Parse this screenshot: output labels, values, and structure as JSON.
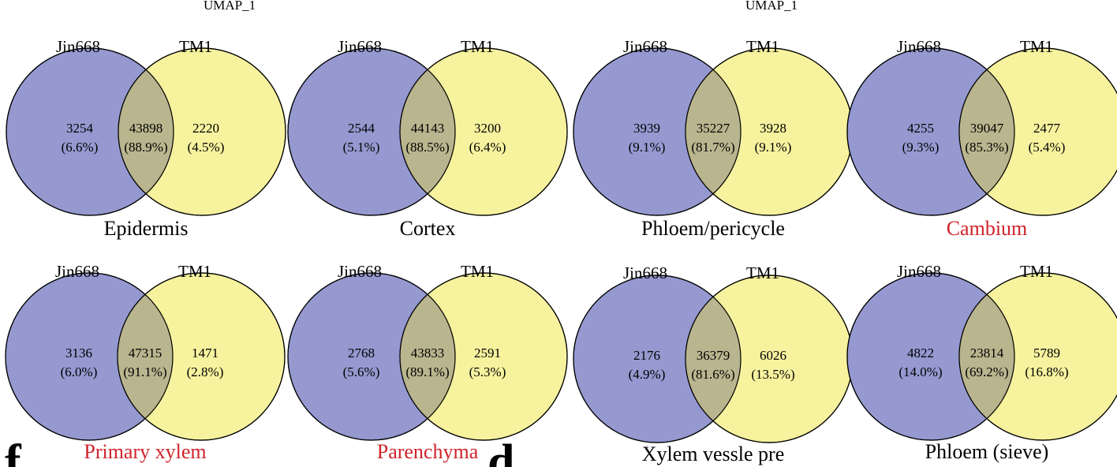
{
  "top_axis_labels": [
    "UMAP_1",
    "UMAP_1"
  ],
  "colors": {
    "left_circle": "#9599d0",
    "right_circle": "#f6f29e",
    "overlap": "#b9b58e",
    "title_default": "#000000",
    "title_highlight": "#d0232b"
  },
  "venns": [
    {
      "title": "Epidermis",
      "highlight": false,
      "left_label": "Jin668",
      "right_label": "TM1",
      "left": {
        "count": "3254",
        "pct": "(6.6%)"
      },
      "overlap": {
        "count": "43898",
        "pct": "(88.9%)"
      },
      "right": {
        "count": "2220",
        "pct": "(4.5%)"
      }
    },
    {
      "title": "Cortex",
      "highlight": false,
      "left_label": "Jin668",
      "right_label": "TM1",
      "left": {
        "count": "2544",
        "pct": "(5.1%)"
      },
      "overlap": {
        "count": "44143",
        "pct": "(88.5%)"
      },
      "right": {
        "count": "3200",
        "pct": "(6.4%)"
      }
    },
    {
      "title": "Phloem/pericycle",
      "highlight": false,
      "left_label": "Jin668",
      "right_label": "TM1",
      "left": {
        "count": "3939",
        "pct": "(9.1%)"
      },
      "overlap": {
        "count": "35227",
        "pct": "(81.7%)"
      },
      "right": {
        "count": "3928",
        "pct": "(9.1%)"
      }
    },
    {
      "title": "Cambium",
      "highlight": true,
      "left_label": "Jin668",
      "right_label": "TM1",
      "left": {
        "count": "4255",
        "pct": "(9.3%)"
      },
      "overlap": {
        "count": "39047",
        "pct": "(85.3%)"
      },
      "right": {
        "count": "2477",
        "pct": "(5.4%)"
      }
    },
    {
      "title": "Primary xylem",
      "highlight": true,
      "left_label": "Jin668",
      "right_label": "TM1",
      "left": {
        "count": "3136",
        "pct": "(6.0%)"
      },
      "overlap": {
        "count": "47315",
        "pct": "(91.1%)"
      },
      "right": {
        "count": "1471",
        "pct": "(2.8%)"
      }
    },
    {
      "title": "Parenchyma",
      "highlight": true,
      "left_label": "Jin668",
      "right_label": "TM1",
      "left": {
        "count": "2768",
        "pct": "(5.6%)"
      },
      "overlap": {
        "count": "43833",
        "pct": "(89.1%)"
      },
      "right": {
        "count": "2591",
        "pct": "(5.3%)"
      }
    },
    {
      "title": "Xylem vessle pre",
      "highlight": false,
      "left_label": "Jin668",
      "right_label": "TM1",
      "left": {
        "count": "2176",
        "pct": "(4.9%)"
      },
      "overlap": {
        "count": "36379",
        "pct": "(81.6%)"
      },
      "right": {
        "count": "6026",
        "pct": "(13.5%)"
      }
    },
    {
      "title": "Phloem (sieve)",
      "highlight": false,
      "left_label": "Jin668",
      "right_label": "TM1",
      "left": {
        "count": "4822",
        "pct": "(14.0%)"
      },
      "overlap": {
        "count": "23814",
        "pct": "(69.2%)"
      },
      "right": {
        "count": "5789",
        "pct": "(16.8%)"
      }
    }
  ],
  "partial_panel_letters": [
    "f",
    "d"
  ]
}
